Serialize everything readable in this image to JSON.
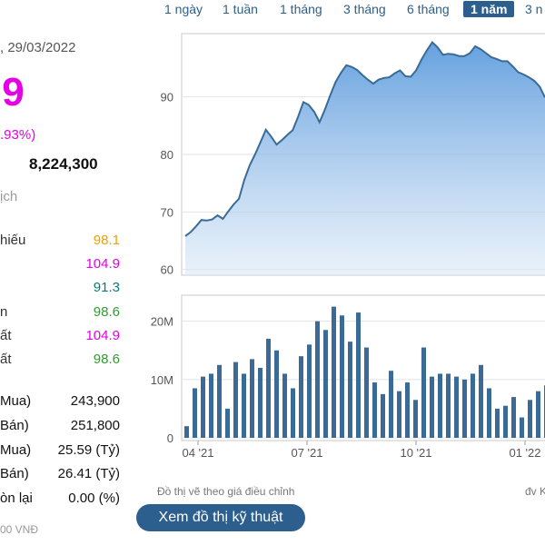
{
  "quote": {
    "date": ", 29/03/2022",
    "price": ".9",
    "change_pct": ".93%)",
    "volume": "8,224,300",
    "history_label": "ịch"
  },
  "stats": [
    {
      "label": "hiếu",
      "value": "98.1",
      "color": "#f0a000"
    },
    {
      "label": "",
      "value": "104.9",
      "color": "#e600e6"
    },
    {
      "label": "",
      "value": "91.3",
      "color": "#0a7a7a"
    },
    {
      "label": "n",
      "value": "98.6",
      "color": "#2e9e2e"
    },
    {
      "label": "ất",
      "value": "104.9",
      "color": "#e600e6"
    },
    {
      "label": "ất",
      "value": "98.6",
      "color": "#2e9e2e"
    }
  ],
  "orders": [
    {
      "label": "Mua)",
      "value": "243,900"
    },
    {
      "label": "Bán)",
      "value": "251,800"
    },
    {
      "label": "Mua)",
      "value": "25.59 (Tỷ)"
    },
    {
      "label": "Bán)",
      "value": "26.41 (Tỷ)"
    },
    {
      "label": "òn lại",
      "value": "0.00 (%)"
    }
  ],
  "unit_note": "00 VNĐ",
  "range_tabs": [
    "1 ngày",
    "1 tuần",
    "1 tháng",
    "3 tháng",
    "6 tháng",
    "1 năm",
    "3 n"
  ],
  "active_tab": "1 năm",
  "footer": {
    "note": "Đồ thị vẽ theo giá điều chỉnh",
    "note_right": "đv K",
    "tech_button": "Xem đồ thị kỹ thuật"
  },
  "chart_data": [
    {
      "type": "area",
      "x_ticks": [
        "04 '21",
        "07 '21",
        "10 '21",
        "01 '22"
      ],
      "yticks": [
        60,
        70,
        80,
        90
      ],
      "ylim": [
        59,
        101
      ],
      "color": "#3a6b96",
      "values": [
        65.8,
        66.5,
        67.5,
        68.6,
        68.5,
        68.7,
        69.4,
        68.8,
        70.1,
        71.3,
        72.3,
        75.6,
        78.1,
        80,
        82.1,
        84.3,
        83.1,
        81.7,
        82.5,
        83.4,
        84.2,
        86.5,
        89.1,
        88.6,
        87.4,
        85.6,
        87.8,
        90.3,
        92.6,
        94.2,
        95.5,
        95.2,
        94.7,
        93.8,
        93,
        92.3,
        93,
        93.3,
        93.4,
        94.1,
        94.6,
        93.6,
        93.5,
        94.6,
        96.5,
        98.1,
        99.5,
        98.6,
        97.3,
        97.5,
        97.4,
        97.1,
        97.1,
        97.6,
        98.8,
        98.3,
        97.6,
        96.9,
        96.6,
        96.2,
        96.2,
        95.3,
        94.3,
        93.9,
        93.4,
        92.8,
        91.8,
        89.9
      ]
    },
    {
      "type": "bar",
      "yticks": [
        0,
        10,
        20
      ],
      "ytick_labels": [
        "0",
        "10M",
        "20M"
      ],
      "ylim": [
        0,
        24
      ],
      "color": "#3a6b96",
      "values": [
        2,
        8.5,
        10.5,
        11,
        12.5,
        5,
        13,
        11,
        13.5,
        12,
        17,
        15,
        11,
        8.5,
        14,
        16,
        20,
        18.5,
        22.5,
        21,
        16.5,
        21.5,
        15.5,
        9.5,
        7.5,
        11.5,
        8,
        9.5,
        6.5,
        15.5,
        10.5,
        11,
        11,
        10.5,
        10,
        11,
        12.5,
        8.5,
        5,
        5.5,
        7,
        3.5,
        6.5,
        8,
        9
      ]
    }
  ]
}
